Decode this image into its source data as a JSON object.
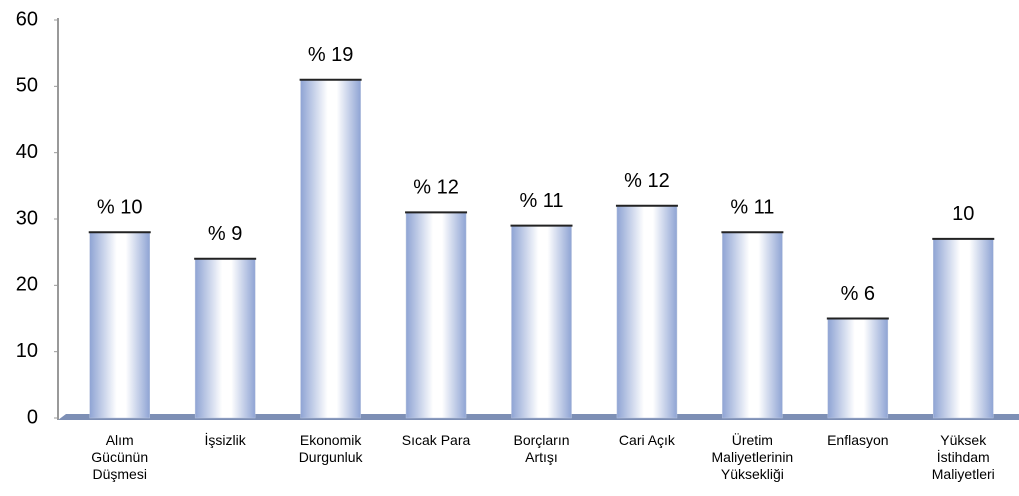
{
  "chart_data": {
    "type": "bar",
    "categories": [
      "Alım\nGücünün\nDüşmesi",
      "İşsizlik",
      "Ekonomik\nDurgunluk",
      "Sıcak Para",
      "Borçların\nArtışı",
      "Cari Açık",
      "Üretim\nMaliyetlerinin\nYüksekliği",
      "Enflasyon",
      "Yüksek\nİstihdam\nMaliyetleri"
    ],
    "values": [
      28,
      24,
      51,
      31,
      29,
      32,
      28,
      15,
      27
    ],
    "annotations": [
      "% 10",
      "% 9",
      "% 19",
      "% 12",
      "% 11",
      "% 12",
      "% 11",
      "% 6",
      "10"
    ],
    "color": "#8fa4d4",
    "ylim": [
      0,
      60
    ],
    "yticks": [
      0,
      10,
      20,
      30,
      40,
      50,
      60
    ],
    "grid": false
  }
}
